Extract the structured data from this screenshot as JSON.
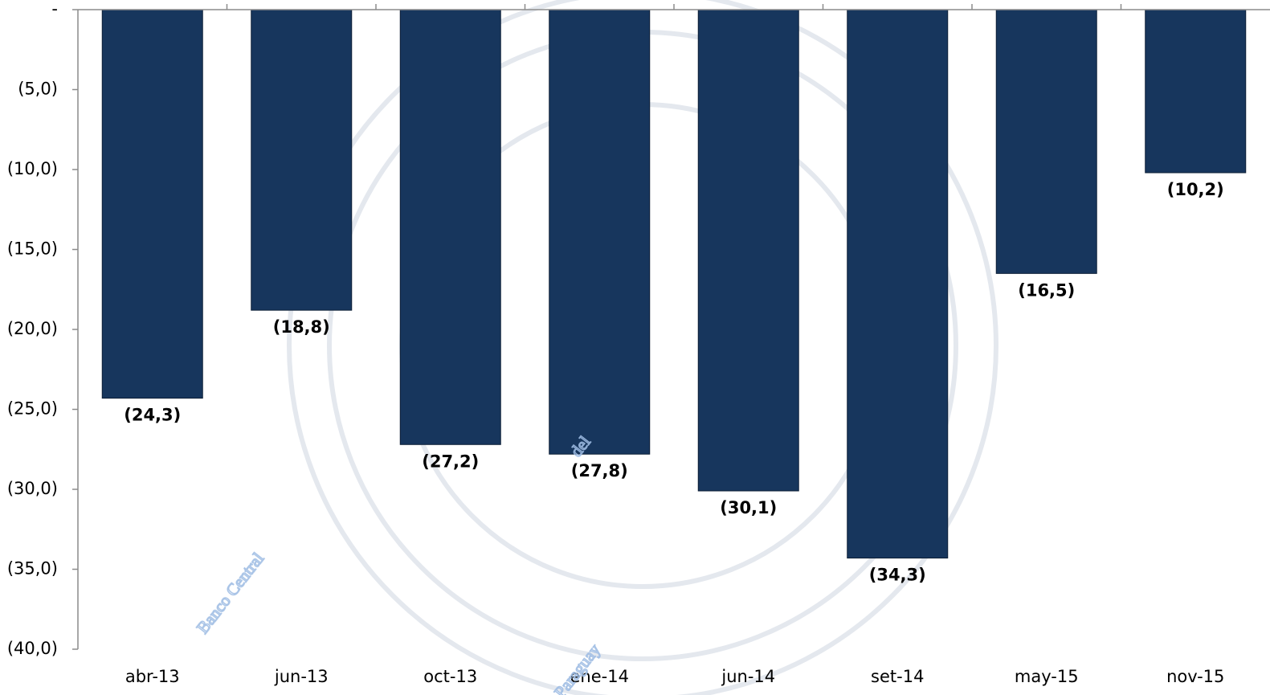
{
  "chart_data": {
    "type": "bar",
    "categories": [
      "abr-13",
      "jun-13",
      "oct-13",
      "ene-14",
      "jun-14",
      "set-14",
      "may-15",
      "nov-15"
    ],
    "values": [
      -24.3,
      -18.8,
      -27.2,
      -27.8,
      -30.1,
      -34.3,
      -16.5,
      -10.2
    ],
    "value_labels": [
      "(24,3)",
      "(18,8)",
      "(27,2)",
      "(27,8)",
      "(30,1)",
      "(34,3)",
      "(16,5)",
      "(10,2)"
    ],
    "color": "#17365d",
    "ylim": [
      -40,
      0
    ],
    "yticks": [
      {
        "value": 0,
        "label": "-"
      },
      {
        "value": -5,
        "label": "(5,0)"
      },
      {
        "value": -10,
        "label": "(10,0)"
      },
      {
        "value": -15,
        "label": "(15,0)"
      },
      {
        "value": -20,
        "label": "(20,0)"
      },
      {
        "value": -25,
        "label": "(25,0)"
      },
      {
        "value": -30,
        "label": "(30,0)"
      },
      {
        "value": -35,
        "label": "(35,0)"
      },
      {
        "value": -40,
        "label": "(40,0)"
      }
    ],
    "grid": false,
    "watermark": [
      "Banco Central",
      "del",
      "Paraguay"
    ]
  }
}
